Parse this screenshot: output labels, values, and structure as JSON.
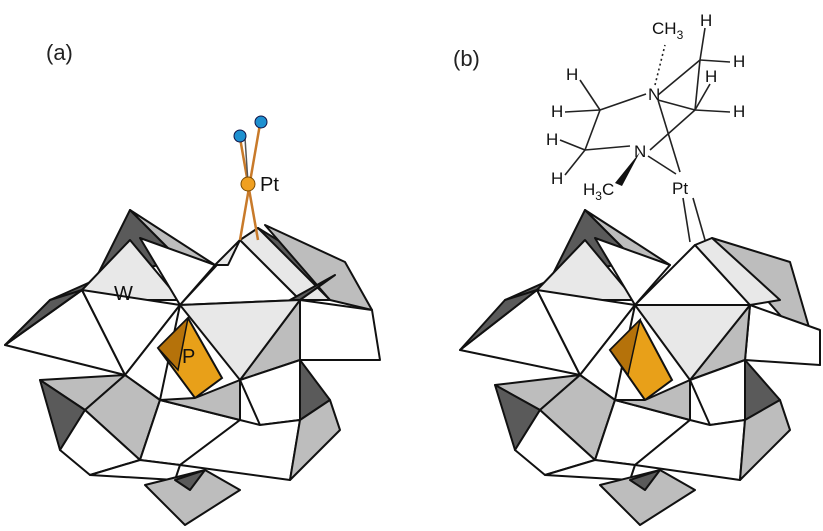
{
  "panels": [
    {
      "id": "a",
      "label": "(a)",
      "atom_labels": {
        "W": "W",
        "P": "P",
        "Pt": "Pt"
      }
    },
    {
      "id": "b",
      "label": "(b)",
      "atom_labels": {
        "Pt": "Pt",
        "N1": "N",
        "N2": "N",
        "CH3_main": "CH",
        "CH3_sub": "3",
        "H3C_main": "H",
        "H3C_sub": "3",
        "H3C_tail": "C",
        "H": "H"
      }
    }
  ],
  "colors": {
    "phosphate": "#e8a019",
    "phosphate_dark": "#b5720a",
    "platinum": "#f0a020",
    "ligand_atom": "#1e90d0",
    "bond_pt": "#c87a2a",
    "octahedron_white": "#ffffff",
    "octahedron_light": "#e8e8e8",
    "octahedron_mid": "#bdbdbd",
    "octahedron_dark": "#5a5a5a"
  }
}
